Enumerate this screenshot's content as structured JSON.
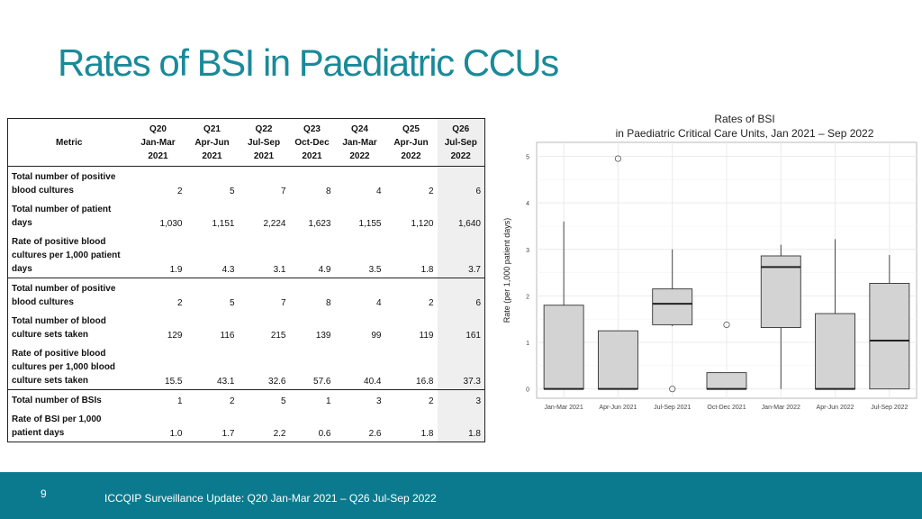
{
  "title": "Rates of BSI in Paediatric CCUs",
  "table": {
    "metric_header": "Metric",
    "columns": [
      {
        "q": "Q20",
        "period": "Jan-Mar",
        "year": "2021"
      },
      {
        "q": "Q21",
        "period": "Apr-Jun",
        "year": "2021"
      },
      {
        "q": "Q22",
        "period": "Jul-Sep",
        "year": "2021"
      },
      {
        "q": "Q23",
        "period": "Oct-Dec",
        "year": "2021"
      },
      {
        "q": "Q24",
        "period": "Jan-Mar",
        "year": "2022"
      },
      {
        "q": "Q25",
        "period": "Apr-Jun",
        "year": "2022"
      },
      {
        "q": "Q26",
        "period": "Jul-Sep",
        "year": "2022"
      }
    ],
    "rows": [
      {
        "lines": [
          "Total number of positive",
          "blood cultures"
        ],
        "values": [
          "2",
          "5",
          "7",
          "8",
          "4",
          "2",
          "6"
        ],
        "sep": false
      },
      {
        "lines": [
          "Total number of patient",
          "days"
        ],
        "values": [
          "1,030",
          "1,151",
          "2,224",
          "1,623",
          "1,155",
          "1,120",
          "1,640"
        ],
        "sep": false
      },
      {
        "lines": [
          "Rate of positive blood",
          "cultures per 1,000 patient",
          "days"
        ],
        "values": [
          "1.9",
          "4.3",
          "3.1",
          "4.9",
          "3.5",
          "1.8",
          "3.7"
        ],
        "sep": false
      },
      {
        "lines": [
          "Total number of positive",
          "blood cultures"
        ],
        "values": [
          "2",
          "5",
          "7",
          "8",
          "4",
          "2",
          "6"
        ],
        "sep": true
      },
      {
        "lines": [
          "Total number of blood",
          "culture sets taken"
        ],
        "values": [
          "129",
          "116",
          "215",
          "139",
          "99",
          "119",
          "161"
        ],
        "sep": false
      },
      {
        "lines": [
          "Rate of positive blood",
          "cultures per 1,000 blood",
          "culture sets taken"
        ],
        "values": [
          "15.5",
          "43.1",
          "32.6",
          "57.6",
          "40.4",
          "16.8",
          "37.3"
        ],
        "sep": false
      },
      {
        "lines": [
          "Total number of BSIs"
        ],
        "values": [
          "1",
          "2",
          "5",
          "1",
          "3",
          "2",
          "3"
        ],
        "sep": true
      },
      {
        "lines": [
          "Rate of BSI per 1,000",
          "patient days"
        ],
        "values": [
          "1.0",
          "1.7",
          "2.2",
          "0.6",
          "2.6",
          "1.8",
          "1.8"
        ],
        "sep": false
      }
    ]
  },
  "chart_data": {
    "type": "box",
    "title": "Rates of BSI",
    "subtitle": "in Paediatric Critical Care Units, Jan 2021 – Sep 2022",
    "xlabel": "",
    "ylabel": "Rate (per 1,000 patient days)",
    "ylim": [
      -0.2,
      5.3
    ],
    "yticks": [
      0,
      1,
      2,
      3,
      4,
      5
    ],
    "grid": true,
    "categories": [
      "Jan-Mar 2021",
      "Apr-Jun 2021",
      "Jul-Sep 2021",
      "Oct-Dec 2021",
      "Jan-Mar 2022",
      "Apr-Jun 2022",
      "Jul-Sep 2022"
    ],
    "boxes": [
      {
        "whisker_low": 0,
        "q1": 0,
        "median": 0,
        "q3": 1.8,
        "whisker_high": 3.6,
        "outliers": []
      },
      {
        "whisker_low": 0,
        "q1": 0,
        "median": 0,
        "q3": 1.25,
        "whisker_high": 1.25,
        "outliers": [
          4.95
        ]
      },
      {
        "whisker_low": 1.35,
        "q1": 1.38,
        "median": 1.83,
        "q3": 2.15,
        "whisker_high": 3.0,
        "outliers": [
          0
        ]
      },
      {
        "whisker_low": 0,
        "q1": 0,
        "median": 0,
        "q3": 0.35,
        "whisker_high": 0.35,
        "outliers": [
          1.38
        ]
      },
      {
        "whisker_low": 0,
        "q1": 1.32,
        "median": 2.62,
        "q3": 2.86,
        "whisker_high": 3.1,
        "outliers": []
      },
      {
        "whisker_low": 0,
        "q1": 0,
        "median": 0,
        "q3": 1.62,
        "whisker_high": 3.22,
        "outliers": []
      },
      {
        "whisker_low": 0,
        "q1": 0,
        "median": 1.04,
        "q3": 2.27,
        "whisker_high": 2.88,
        "outliers": []
      }
    ],
    "box_fill": "#d3d3d3",
    "grid_color": "#ebebeb"
  },
  "footer": {
    "page_number": "9",
    "text": "ICCQIP Surveillance Update: Q20 Jan-Mar 2021 – Q26 Jul-Sep 2022",
    "background": "#0c7a8e"
  }
}
